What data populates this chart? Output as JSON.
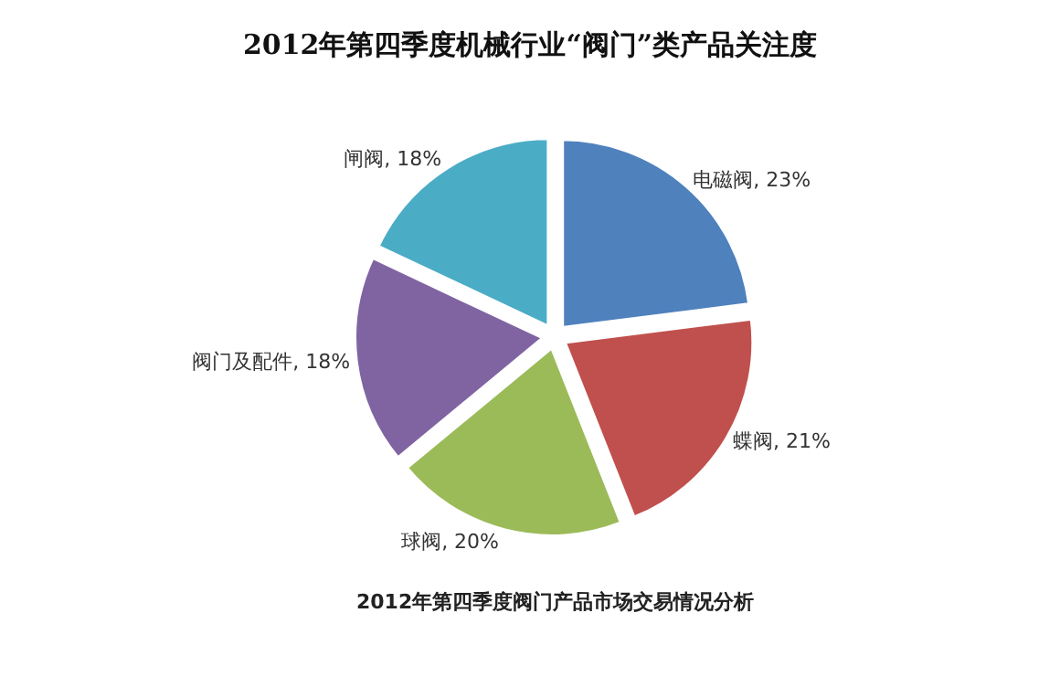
{
  "chart_data": {
    "type": "pie",
    "title": "2012年第四季度机械行业“阀门”类产品关注度",
    "categories": [
      "电磁阀",
      "蝶阀",
      "球阀",
      "阀门及配件",
      "闸阀"
    ],
    "values": [
      23,
      21,
      20,
      18,
      18
    ],
    "colors": [
      "#4f81bd",
      "#c0504d",
      "#9bbb59",
      "#8064a2",
      "#4bacc6"
    ],
    "value_labels": [
      ", 23%",
      ", 21%",
      ", 20%",
      ", 18%",
      ", 18%"
    ],
    "legend": false,
    "annotations": [
      "2012年第四季度阀门产品市场交易情况分析"
    ]
  }
}
